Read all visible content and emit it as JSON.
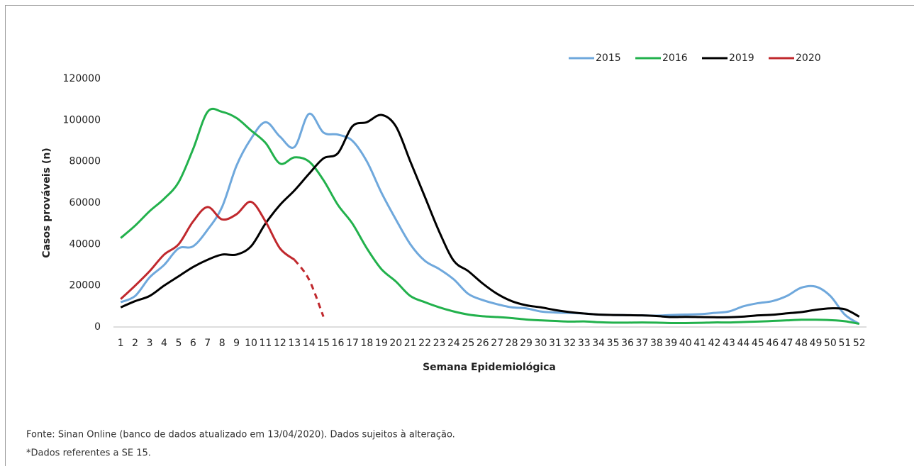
{
  "chart_data": {
    "type": "line",
    "x_label": "Semana Epidemiológica",
    "y_label": "Casos prováveis (n)",
    "categories": [
      "1",
      "2",
      "3",
      "4",
      "5",
      "6",
      "7",
      "8",
      "9",
      "10",
      "11",
      "12",
      "13",
      "14",
      "15",
      "16",
      "17",
      "18",
      "19",
      "20",
      "21",
      "22",
      "23",
      "24",
      "25",
      "26",
      "27",
      "28",
      "29",
      "30",
      "31",
      "32",
      "33",
      "34",
      "35",
      "36",
      "37",
      "38",
      "39",
      "40",
      "41",
      "42",
      "43",
      "44",
      "45",
      "46",
      "47",
      "48",
      "49",
      "50",
      "51",
      "52"
    ],
    "ylim": [
      0,
      120000
    ],
    "yticks": [
      0,
      20000,
      40000,
      60000,
      80000,
      100000,
      120000
    ],
    "grid": false,
    "legend": "top-right",
    "series": [
      {
        "name": "2015",
        "color": "#6fa8dc",
        "values": [
          12000,
          15000,
          24000,
          30000,
          38000,
          39000,
          47000,
          58000,
          78000,
          91000,
          99000,
          92000,
          87000,
          103000,
          94000,
          93000,
          90000,
          80000,
          65000,
          52000,
          40000,
          32000,
          28000,
          23000,
          16000,
          13000,
          11000,
          9500,
          9000,
          7500,
          7000,
          6800,
          6500,
          6000,
          5800,
          5700,
          5600,
          5500,
          5800,
          6000,
          6200,
          6800,
          7500,
          10000,
          11500,
          12500,
          15000,
          19000,
          19500,
          15000,
          6000,
          1500
        ]
      },
      {
        "name": "2016",
        "color": "#22b14c",
        "values": [
          43000,
          49000,
          56000,
          62000,
          70000,
          86000,
          104000,
          104000,
          101000,
          95000,
          89000,
          79000,
          82000,
          80000,
          71000,
          59000,
          50000,
          38000,
          28000,
          22000,
          15000,
          12000,
          9500,
          7500,
          6000,
          5200,
          4800,
          4300,
          3600,
          3200,
          2900,
          2600,
          2700,
          2300,
          2100,
          2100,
          2200,
          2100,
          1900,
          1900,
          2000,
          2200,
          2200,
          2400,
          2600,
          2900,
          3200,
          3500,
          3500,
          3300,
          2800,
          1500
        ]
      },
      {
        "name": "2019",
        "color": "#000000",
        "values": [
          9500,
          12500,
          15000,
          20000,
          24500,
          29000,
          32500,
          35000,
          35000,
          39000,
          50000,
          59000,
          66000,
          74000,
          81500,
          84000,
          97000,
          99000,
          102500,
          97000,
          80000,
          63000,
          46000,
          32000,
          27000,
          21000,
          16000,
          12500,
          10500,
          9500,
          8200,
          7200,
          6500,
          6000,
          5800,
          5700,
          5600,
          5300,
          4800,
          4900,
          4800,
          4700,
          4700,
          5000,
          5600,
          5900,
          6600,
          7200,
          8300,
          9000,
          8600,
          5000
        ]
      },
      {
        "name": "2020",
        "color": "#c0282d",
        "dashed_from": 14,
        "values": [
          13500,
          20000,
          27000,
          35000,
          40000,
          51000,
          58000,
          52000,
          54500,
          60500,
          51000,
          38000,
          32500,
          23000,
          5000,
          null,
          null,
          null,
          null,
          null,
          null,
          null,
          null,
          null,
          null,
          null,
          null,
          null,
          null,
          null,
          null,
          null,
          null,
          null,
          null,
          null,
          null,
          null,
          null,
          null,
          null,
          null,
          null,
          null,
          null,
          null,
          null,
          null,
          null,
          null,
          null,
          null
        ]
      }
    ]
  },
  "notes": [
    "Fonte: Sinan Online (banco de dados atualizado em 13/04/2020). Dados sujeitos à alteração.",
    "*Dados referentes a SE 15."
  ]
}
